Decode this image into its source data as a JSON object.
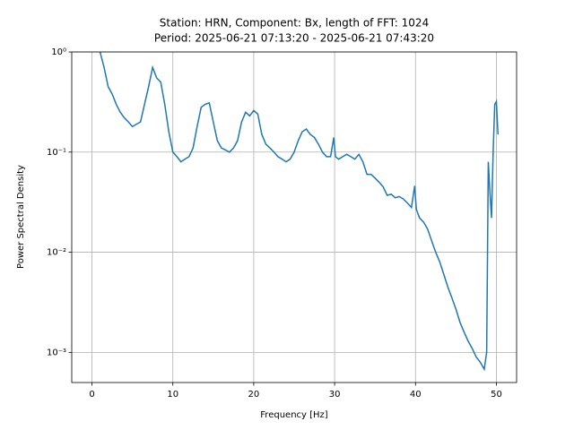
{
  "chart_data": {
    "type": "line",
    "title": [
      "Station: HRN, Component: Bx, length of FFT: 1024",
      "Period: 2025-06-21 07:13:20 - 2025-06-21 07:43:20"
    ],
    "xlabel": "Frequency [Hz]",
    "ylabel": "Power Spectral Density",
    "xlim": [
      -2.5,
      52.5
    ],
    "ylim": [
      0.0005,
      1
    ],
    "ylog": true,
    "grid": true,
    "xticks": [
      0,
      10,
      20,
      30,
      40,
      50
    ],
    "yticks": [
      {
        "value": 0.001,
        "label": "10⁻³"
      },
      {
        "value": 0.01,
        "label": "10⁻²"
      },
      {
        "value": 0.1,
        "label": "10⁻¹"
      },
      {
        "value": 1,
        "label": "10⁰"
      }
    ],
    "x": [
      1.0,
      1.5,
      2.0,
      2.5,
      3.0,
      3.5,
      4.0,
      4.5,
      5.0,
      5.5,
      6.0,
      6.5,
      7.0,
      7.5,
      8.0,
      8.5,
      9.0,
      9.5,
      10.0,
      10.5,
      11.0,
      11.5,
      12.0,
      12.5,
      13.0,
      13.5,
      14.0,
      14.5,
      15.0,
      15.5,
      16.0,
      16.5,
      17.0,
      17.5,
      18.0,
      18.5,
      19.0,
      19.5,
      20.0,
      20.5,
      21.0,
      21.5,
      22.0,
      22.5,
      23.0,
      23.5,
      24.0,
      24.5,
      25.0,
      25.5,
      26.0,
      26.5,
      27.0,
      27.5,
      28.0,
      28.5,
      29.0,
      29.5,
      29.9,
      30.1,
      30.5,
      31.0,
      31.5,
      32.0,
      32.5,
      33.0,
      33.5,
      34.0,
      34.5,
      35.0,
      35.5,
      36.0,
      36.5,
      37.0,
      37.5,
      38.0,
      38.5,
      39.0,
      39.5,
      39.9,
      40.1,
      40.5,
      41.0,
      41.5,
      42.0,
      42.5,
      43.0,
      43.5,
      44.0,
      44.5,
      45.0,
      45.5,
      46.0,
      46.5,
      47.0,
      47.5,
      48.0,
      48.5,
      48.8,
      49.0,
      49.2,
      49.4,
      49.6,
      49.8,
      50.0,
      50.2
    ],
    "series": [
      {
        "name": "Bx",
        "color": "#1f77b4",
        "values": [
          1.0,
          0.7,
          0.45,
          0.38,
          0.3,
          0.25,
          0.22,
          0.2,
          0.18,
          0.19,
          0.2,
          0.3,
          0.45,
          0.7,
          0.55,
          0.5,
          0.3,
          0.16,
          0.1,
          0.09,
          0.08,
          0.085,
          0.09,
          0.11,
          0.18,
          0.28,
          0.3,
          0.31,
          0.2,
          0.13,
          0.11,
          0.105,
          0.1,
          0.11,
          0.13,
          0.2,
          0.25,
          0.23,
          0.26,
          0.24,
          0.15,
          0.12,
          0.11,
          0.1,
          0.09,
          0.085,
          0.08,
          0.085,
          0.1,
          0.13,
          0.16,
          0.17,
          0.15,
          0.14,
          0.12,
          0.1,
          0.09,
          0.09,
          0.14,
          0.09,
          0.085,
          0.09,
          0.095,
          0.09,
          0.085,
          0.095,
          0.08,
          0.06,
          0.06,
          0.055,
          0.05,
          0.045,
          0.037,
          0.038,
          0.035,
          0.036,
          0.034,
          0.031,
          0.028,
          0.046,
          0.027,
          0.022,
          0.02,
          0.017,
          0.013,
          0.01,
          0.008,
          0.006,
          0.0045,
          0.0035,
          0.0027,
          0.002,
          0.0016,
          0.0013,
          0.0011,
          0.0009,
          0.0008,
          0.00068,
          0.001,
          0.08,
          0.04,
          0.022,
          0.1,
          0.3,
          0.32,
          0.15
        ]
      }
    ]
  }
}
